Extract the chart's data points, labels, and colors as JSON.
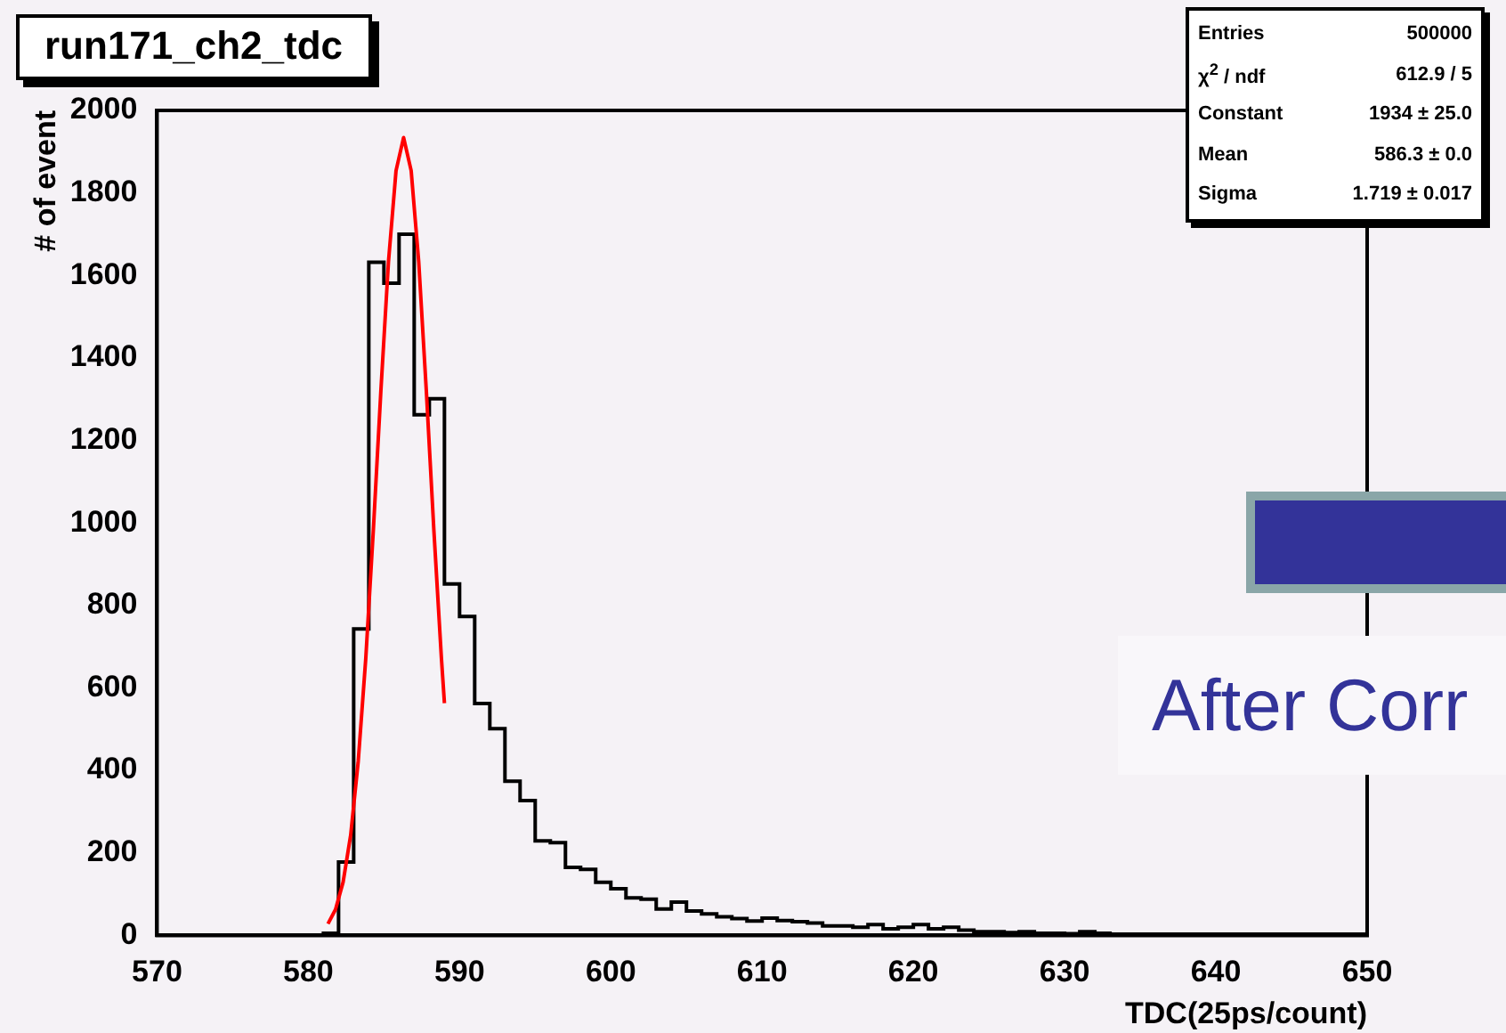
{
  "chart_data": {
    "type": "histogram",
    "title": "run171_ch2_tdc",
    "xlabel": "TDC(25ps/count)",
    "ylabel": "# of event",
    "bins": [
      570,
      571,
      572,
      573,
      574,
      575,
      576,
      577,
      578,
      579,
      580,
      581,
      582,
      583,
      584,
      585,
      586,
      587,
      588,
      589,
      590,
      591,
      592,
      593,
      594,
      595,
      596,
      597,
      598,
      599,
      600,
      601,
      602,
      603,
      604,
      605,
      606,
      607,
      608,
      609,
      610,
      611,
      612,
      613,
      614,
      615,
      616,
      617,
      618,
      619,
      620,
      621,
      622,
      623,
      624,
      625,
      626,
      627,
      628,
      629,
      630,
      631,
      632,
      633,
      634,
      635,
      636,
      637,
      638,
      639,
      640,
      641,
      642,
      643,
      644,
      645,
      646,
      647,
      648,
      649,
      650
    ],
    "series": [
      {
        "color": "#000000",
        "values": [
          0,
          0,
          0,
          0,
          0,
          0,
          0,
          0,
          0,
          0,
          0,
          5,
          178,
          743,
          1632,
          1581,
          1700,
          1262,
          1301,
          852,
          773,
          562,
          501,
          374,
          327,
          229,
          225,
          165,
          160,
          129,
          113,
          91,
          88,
          64,
          81,
          59,
          52,
          45,
          41,
          35,
          42,
          36,
          33,
          30,
          23,
          23,
          20,
          26,
          16,
          20,
          26,
          16,
          20,
          13,
          9,
          9,
          7,
          9,
          5,
          5,
          4,
          9,
          5,
          3,
          3,
          3,
          3,
          3,
          3,
          3,
          3,
          3,
          3,
          3,
          3,
          3,
          3,
          3,
          3,
          3
        ]
      },
      {
        "type": "line",
        "color": "#ff0000",
        "x": [
          581.3,
          581.8,
          582.3,
          582.8,
          583.3,
          583.8,
          584.3,
          584.8,
          585.3,
          585.8,
          586.3,
          586.8,
          587.3,
          587.8,
          588.3,
          588.8,
          589.0
        ],
        "values": [
          28,
          63,
          129,
          243,
          422,
          672,
          983,
          1322,
          1633,
          1854,
          1934,
          1854,
          1633,
          1322,
          983,
          672,
          563
        ]
      }
    ],
    "xlim": [
      570,
      650
    ],
    "xticks": [
      570,
      580,
      590,
      600,
      610,
      620,
      630,
      640,
      650
    ],
    "ylim": [
      0,
      2000
    ],
    "yticks": [
      0,
      200,
      400,
      600,
      800,
      1000,
      1200,
      1400,
      1600,
      1800,
      2000
    ],
    "grid": false,
    "legend": false,
    "marker": "none",
    "annotations": [
      "Entries",
      "500000",
      "χ$^{2}$ / ndf",
      "612.9 / 5",
      "Constant",
      "1934 ± 25.0",
      "Mean",
      "586.3 ± 0.0",
      "Sigma",
      "1.719 ± 0.017",
      "After Corr"
    ]
  }
}
